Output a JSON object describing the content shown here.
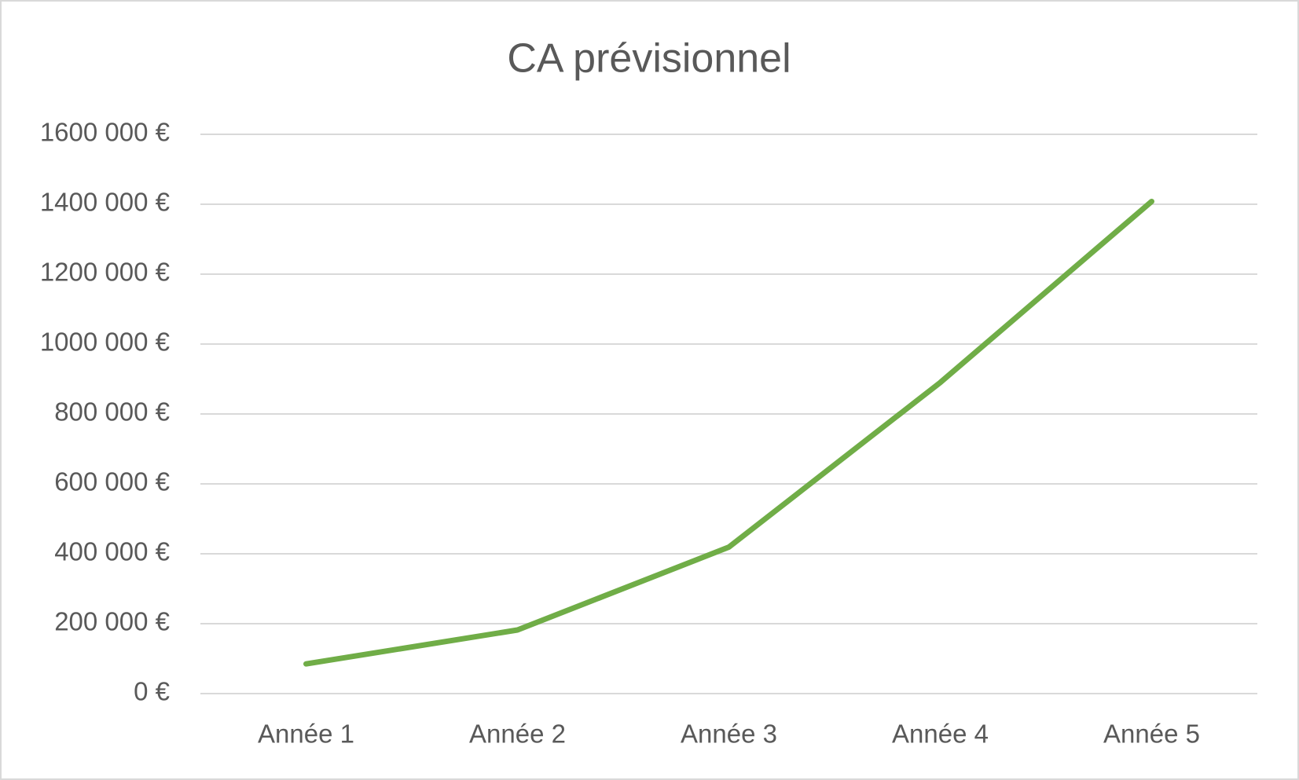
{
  "chart_data": {
    "type": "line",
    "title": "CA prévisionnel",
    "categories": [
      "Année 1",
      "Année 2",
      "Année 3",
      "Année 4",
      "Année 5"
    ],
    "series": [
      {
        "name": "CA",
        "color": "#70ad47",
        "values": [
          85000,
          182000,
          419000,
          890000,
          1408000
        ]
      }
    ],
    "ylim": [
      0,
      1600000
    ],
    "yticks": [
      {
        "value": 0,
        "label": "0 €"
      },
      {
        "value": 200000,
        "label": "200 000 €"
      },
      {
        "value": 400000,
        "label": "400 000 €"
      },
      {
        "value": 600000,
        "label": "600 000 €"
      },
      {
        "value": 800000,
        "label": "800 000 €"
      },
      {
        "value": 1000000,
        "label": "1000 000 €"
      },
      {
        "value": 1200000,
        "label": "1200 000 €"
      },
      {
        "value": 1400000,
        "label": "1400 000 €"
      },
      {
        "value": 1600000,
        "label": "1600 000 €"
      }
    ],
    "grid": true
  }
}
